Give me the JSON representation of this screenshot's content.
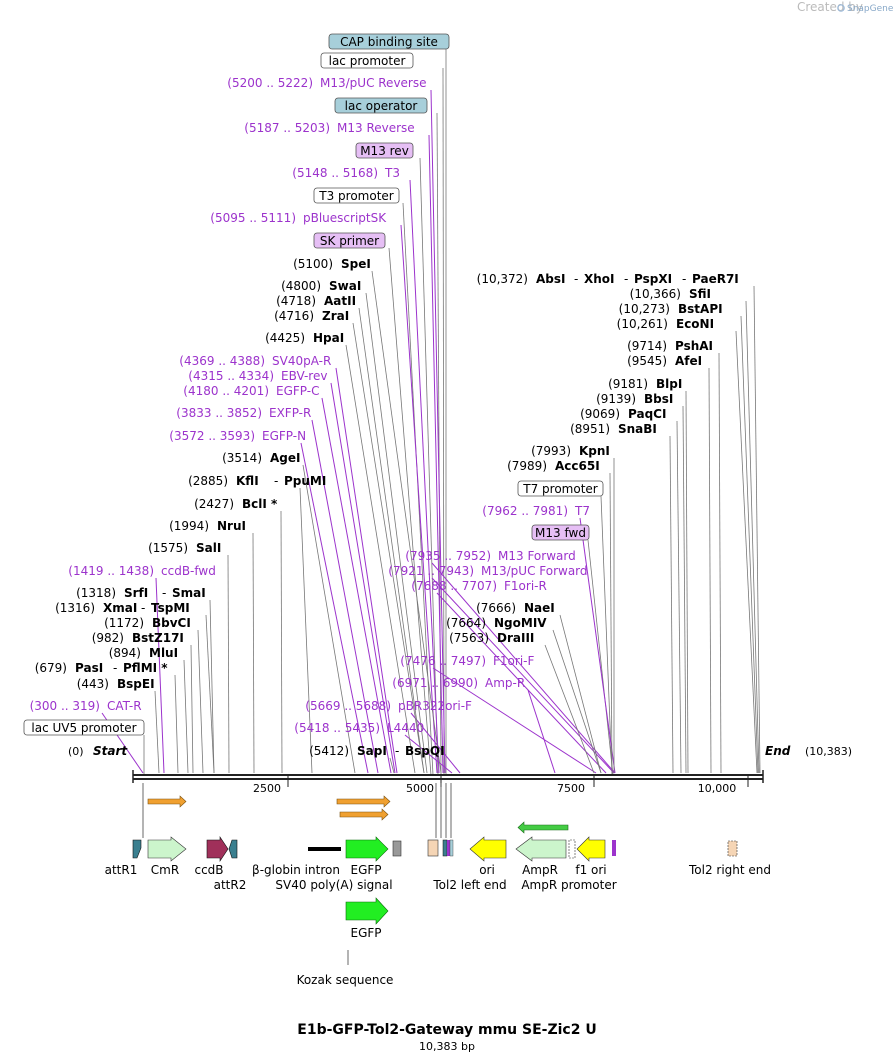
{
  "watermark": {
    "prefix": "Created by",
    "brand": "SnapGene"
  },
  "title": "E1b-GFP-Tol2-Gateway mmu SE-Zic2 U",
  "length_label": "10,383 bp",
  "axis": {
    "ticks": [
      "2500",
      "5000",
      "7500",
      "10,000"
    ]
  },
  "ends": {
    "start_pos": "(0)",
    "start_label": "Start",
    "end_label": "End",
    "end_pos": "(10,383)"
  },
  "boxed_labels": [
    {
      "text": "CAP binding site",
      "fill": "#a7cfda"
    },
    {
      "text": "lac promoter",
      "fill": "#ffffff"
    },
    {
      "text": "lac operator",
      "fill": "#a7cfda"
    },
    {
      "text": "M13 rev",
      "fill": "#e6bff5"
    },
    {
      "text": "T3 promoter",
      "fill": "#ffffff"
    },
    {
      "text": "SK primer",
      "fill": "#e6bff5"
    },
    {
      "text": "T7 promoter",
      "fill": "#ffffff"
    },
    {
      "text": "M13 fwd",
      "fill": "#e6bff5"
    },
    {
      "text": "lac UV5 promoter",
      "fill": "#ffffff"
    }
  ],
  "primers": [
    {
      "range": "(5200 .. 5222)",
      "name": "M13/pUC Reverse"
    },
    {
      "range": "(5187 .. 5203)",
      "name": "M13 Reverse"
    },
    {
      "range": "(5148 .. 5168)",
      "name": "T3"
    },
    {
      "range": "(5095 .. 5111)",
      "name": "pBluescriptSK"
    },
    {
      "range": "(4369 .. 4388)",
      "name": "SV40pA-R"
    },
    {
      "range": "(4315 .. 4334)",
      "name": "EBV-rev"
    },
    {
      "range": "(4180 .. 4201)",
      "name": "EGFP-C"
    },
    {
      "range": "(3833 .. 3852)",
      "name": "EXFP-R"
    },
    {
      "range": "(3572 .. 3593)",
      "name": "EGFP-N"
    },
    {
      "range": "(1419 .. 1438)",
      "name": "ccdB-fwd"
    },
    {
      "range": "(300 .. 319)",
      "name": "CAT-R"
    },
    {
      "range": "(7962 .. 7981)",
      "name": "T7"
    },
    {
      "range": "(7935 .. 7952)",
      "name": "M13 Forward"
    },
    {
      "range": "(7921 .. 7943)",
      "name": "M13/pUC Forward"
    },
    {
      "range": "(7688 .. 7707)",
      "name": "F1ori-R"
    },
    {
      "range": "(7476 .. 7497)",
      "name": "F1ori-F"
    },
    {
      "range": "(6971 .. 6990)",
      "name": "Amp-R"
    },
    {
      "range": "(5669 .. 5688)",
      "name": "pBR322ori-F"
    },
    {
      "range": "(5418 .. 5435)",
      "name": "L4440"
    }
  ],
  "sites": [
    {
      "pos": "(5100)",
      "name": "SpeI"
    },
    {
      "pos": "(4800)",
      "name": "SwaI"
    },
    {
      "pos": "(4718)",
      "name": "AatII"
    },
    {
      "pos": "(4716)",
      "name": "ZraI"
    },
    {
      "pos": "(4425)",
      "name": "HpaI"
    },
    {
      "pos": "(3514)",
      "name": "AgeI"
    },
    {
      "pos": "(2885)",
      "name": "KflI",
      "extra": "PpuMI"
    },
    {
      "pos": "(2427)",
      "name": "BclI *"
    },
    {
      "pos": "(1994)",
      "name": "NruI"
    },
    {
      "pos": "(1575)",
      "name": "SalI"
    },
    {
      "pos": "(1318)",
      "name": "SrfI",
      "extra": "SmaI"
    },
    {
      "pos": "(1316)",
      "name": "XmaI",
      "extra": "TspMI"
    },
    {
      "pos": "(1172)",
      "name": "BbvCI"
    },
    {
      "pos": "(982)",
      "name": "BstZ17I"
    },
    {
      "pos": "(894)",
      "name": "MluI"
    },
    {
      "pos": "(679)",
      "name": "PasI",
      "extra": "PflMI *"
    },
    {
      "pos": "(443)",
      "name": "BspEI"
    },
    {
      "pos": "(5412)",
      "name": "SapI",
      "extra": "BspQI"
    },
    {
      "pos": "(10,372)",
      "name": "AbsI",
      "extra": "XhoI",
      "extra2": "PspXI",
      "extra3": "PaeR7I"
    },
    {
      "pos": "(10,366)",
      "name": "SfiI"
    },
    {
      "pos": "(10,273)",
      "name": "BstAPI"
    },
    {
      "pos": "(10,261)",
      "name": "EcoNI"
    },
    {
      "pos": "(9714)",
      "name": "PshAI"
    },
    {
      "pos": "(9545)",
      "name": "AfeI"
    },
    {
      "pos": "(9181)",
      "name": "BlpI"
    },
    {
      "pos": "(9139)",
      "name": "BbsI"
    },
    {
      "pos": "(9069)",
      "name": "PaqCI"
    },
    {
      "pos": "(8951)",
      "name": "SnaBI"
    },
    {
      "pos": "(7993)",
      "name": "KpnI"
    },
    {
      "pos": "(7989)",
      "name": "Acc65I"
    },
    {
      "pos": "(7666)",
      "name": "NaeI"
    },
    {
      "pos": "(7664)",
      "name": "NgoMIV"
    },
    {
      "pos": "(7563)",
      "name": "DraIII"
    }
  ],
  "features": [
    {
      "name": "attR1",
      "color": "#3a7f8f"
    },
    {
      "name": "CmR",
      "color": "#ccf5cc"
    },
    {
      "name": "ccdB",
      "color": "#a0305a"
    },
    {
      "name": "attR2",
      "color": "#3a7f8f"
    },
    {
      "name": "β-globin intron",
      "color": "#000000"
    },
    {
      "name": "EGFP",
      "color": "#22ee22"
    },
    {
      "name": "SV40 poly(A) signal",
      "color": "#999999"
    },
    {
      "name": "ori",
      "color": "#ffff00"
    },
    {
      "name": "Tol2 left end",
      "color": "#f5d5b5"
    },
    {
      "name": "AmpR",
      "color": "#ccf5cc"
    },
    {
      "name": "AmpR promoter",
      "color": "#ffffff"
    },
    {
      "name": "f1 ori",
      "color": "#ffff00"
    },
    {
      "name": "Tol2 right end",
      "color": "#f5d5b5"
    },
    {
      "name": "EGFP",
      "color": "#22ee22"
    },
    {
      "name": "Kozak sequence",
      "color": "#000000"
    }
  ],
  "colors": {
    "purple": "#9c33cc",
    "line": "#777777",
    "backbone": "#222222",
    "orf_fill": "#f0a030",
    "orf_rev": "#44cc44"
  }
}
